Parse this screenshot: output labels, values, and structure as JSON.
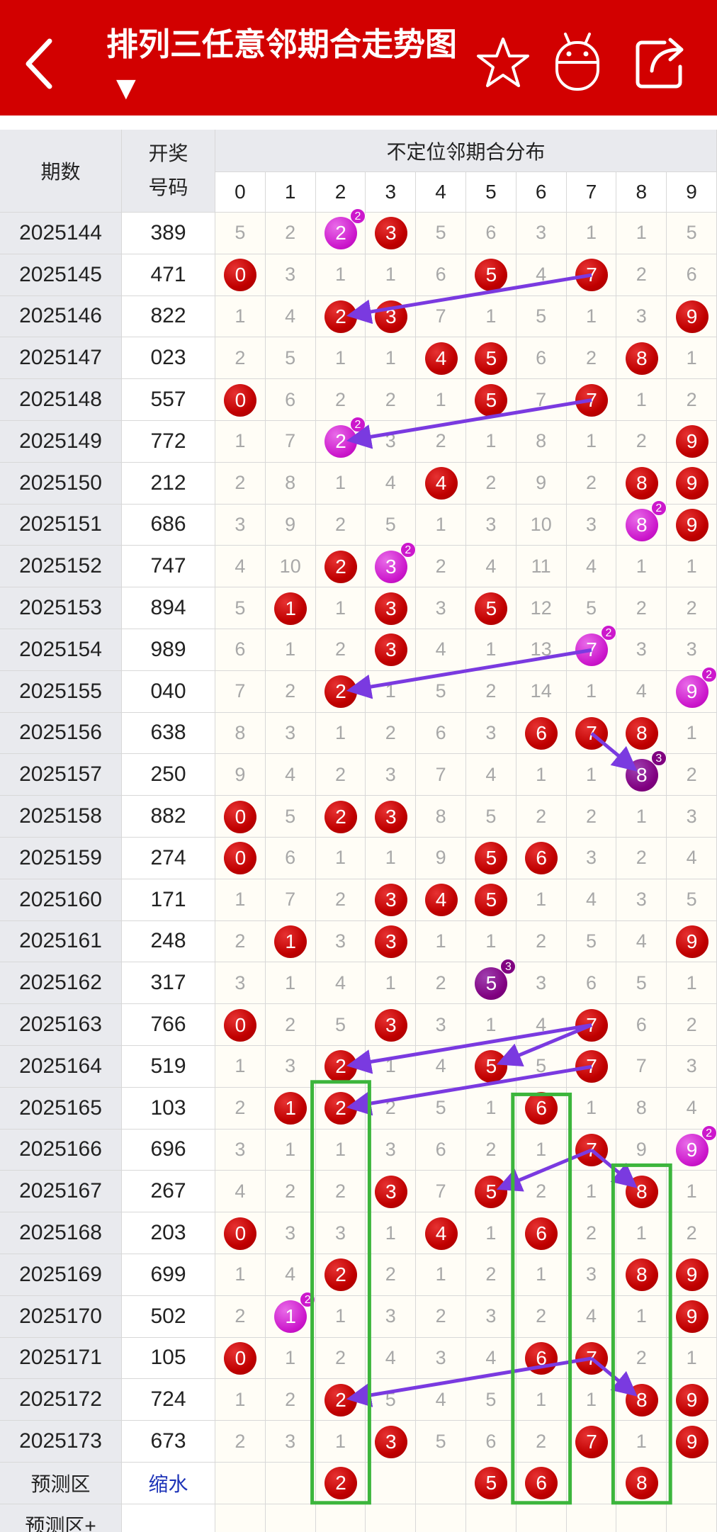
{
  "header": {
    "title": "排列三任意邻期合走势图",
    "dropdown_caret": "▼",
    "icons": [
      "back-icon",
      "star-icon",
      "robot-icon",
      "share-icon"
    ]
  },
  "table": {
    "col_period": "期数",
    "col_code": "开奖号码",
    "col_dist": "不定位邻期合分布",
    "digits": [
      "0",
      "1",
      "2",
      "3",
      "4",
      "5",
      "6",
      "7",
      "8",
      "9"
    ],
    "rows": [
      {
        "period": "2025144",
        "code": "389",
        "cells": [
          "5",
          "2",
          "2",
          "3",
          "5",
          "6",
          "3",
          "1",
          "1",
          "5"
        ]
      },
      {
        "period": "2025145",
        "code": "471",
        "cells": [
          "0",
          "3",
          "1",
          "1",
          "6",
          "5",
          "4",
          "7",
          "2",
          "6"
        ]
      },
      {
        "period": "2025146",
        "code": "822",
        "cells": [
          "1",
          "4",
          "2",
          "3",
          "7",
          "1",
          "5",
          "1",
          "3",
          "9"
        ]
      },
      {
        "period": "2025147",
        "code": "023",
        "cells": [
          "2",
          "5",
          "1",
          "1",
          "4",
          "5",
          "6",
          "2",
          "8",
          "1"
        ]
      },
      {
        "period": "2025148",
        "code": "557",
        "cells": [
          "0",
          "6",
          "2",
          "2",
          "1",
          "5",
          "7",
          "7",
          "1",
          "2"
        ]
      },
      {
        "period": "2025149",
        "code": "772",
        "cells": [
          "1",
          "7",
          "2",
          "3",
          "2",
          "1",
          "8",
          "1",
          "2",
          "9"
        ]
      },
      {
        "period": "2025150",
        "code": "212",
        "cells": [
          "2",
          "8",
          "1",
          "4",
          "4",
          "2",
          "9",
          "2",
          "8",
          "9"
        ]
      },
      {
        "period": "2025151",
        "code": "686",
        "cells": [
          "3",
          "9",
          "2",
          "5",
          "1",
          "3",
          "10",
          "3",
          "8",
          "9"
        ]
      },
      {
        "period": "2025152",
        "code": "747",
        "cells": [
          "4",
          "10",
          "2",
          "3",
          "2",
          "4",
          "11",
          "4",
          "1",
          "1"
        ]
      },
      {
        "period": "2025153",
        "code": "894",
        "cells": [
          "5",
          "1",
          "1",
          "3",
          "3",
          "5",
          "12",
          "5",
          "2",
          "2"
        ]
      },
      {
        "period": "2025154",
        "code": "989",
        "cells": [
          "6",
          "1",
          "2",
          "3",
          "4",
          "1",
          "13",
          "7",
          "3",
          "3"
        ]
      },
      {
        "period": "2025155",
        "code": "040",
        "cells": [
          "7",
          "2",
          "2",
          "1",
          "5",
          "2",
          "14",
          "1",
          "4",
          "9"
        ]
      },
      {
        "period": "2025156",
        "code": "638",
        "cells": [
          "8",
          "3",
          "1",
          "2",
          "6",
          "3",
          "6",
          "7",
          "8",
          "1"
        ]
      },
      {
        "period": "2025157",
        "code": "250",
        "cells": [
          "9",
          "4",
          "2",
          "3",
          "7",
          "4",
          "1",
          "1",
          "8",
          "2"
        ]
      },
      {
        "period": "2025158",
        "code": "882",
        "cells": [
          "0",
          "5",
          "2",
          "3",
          "8",
          "5",
          "2",
          "2",
          "1",
          "3"
        ]
      },
      {
        "period": "2025159",
        "code": "274",
        "cells": [
          "0",
          "6",
          "1",
          "1",
          "9",
          "5",
          "6",
          "3",
          "2",
          "4"
        ]
      },
      {
        "period": "2025160",
        "code": "171",
        "cells": [
          "1",
          "7",
          "2",
          "3",
          "4",
          "5",
          "1",
          "4",
          "3",
          "5"
        ]
      },
      {
        "period": "2025161",
        "code": "248",
        "cells": [
          "2",
          "1",
          "3",
          "3",
          "1",
          "1",
          "2",
          "5",
          "4",
          "9"
        ]
      },
      {
        "period": "2025162",
        "code": "317",
        "cells": [
          "3",
          "1",
          "4",
          "1",
          "2",
          "5",
          "3",
          "6",
          "5",
          "1"
        ]
      },
      {
        "period": "2025163",
        "code": "766",
        "cells": [
          "0",
          "2",
          "5",
          "3",
          "3",
          "1",
          "4",
          "7",
          "6",
          "2"
        ]
      },
      {
        "period": "2025164",
        "code": "519",
        "cells": [
          "1",
          "3",
          "2",
          "1",
          "4",
          "5",
          "5",
          "7",
          "7",
          "3"
        ]
      },
      {
        "period": "2025165",
        "code": "103",
        "cells": [
          "2",
          "1",
          "2",
          "2",
          "5",
          "1",
          "6",
          "1",
          "8",
          "4"
        ]
      },
      {
        "period": "2025166",
        "code": "696",
        "cells": [
          "3",
          "1",
          "1",
          "3",
          "6",
          "2",
          "1",
          "7",
          "9",
          "9"
        ]
      },
      {
        "period": "2025167",
        "code": "267",
        "cells": [
          "4",
          "2",
          "2",
          "3",
          "7",
          "5",
          "2",
          "1",
          "8",
          "1"
        ]
      },
      {
        "period": "2025168",
        "code": "203",
        "cells": [
          "0",
          "3",
          "3",
          "1",
          "4",
          "1",
          "6",
          "2",
          "1",
          "2"
        ]
      },
      {
        "period": "2025169",
        "code": "699",
        "cells": [
          "1",
          "4",
          "2",
          "2",
          "1",
          "2",
          "1",
          "3",
          "8",
          "9"
        ]
      },
      {
        "period": "2025170",
        "code": "502",
        "cells": [
          "2",
          "1",
          "1",
          "3",
          "2",
          "3",
          "2",
          "4",
          "1",
          "9"
        ]
      },
      {
        "period": "2025171",
        "code": "105",
        "cells": [
          "0",
          "1",
          "2",
          "4",
          "3",
          "4",
          "6",
          "7",
          "2",
          "1"
        ]
      },
      {
        "period": "2025172",
        "code": "724",
        "cells": [
          "1",
          "2",
          "2",
          "5",
          "4",
          "5",
          "1",
          "1",
          "8",
          "9"
        ]
      },
      {
        "period": "2025173",
        "code": "673",
        "cells": [
          "2",
          "3",
          "1",
          "3",
          "5",
          "6",
          "2",
          "7",
          "1",
          "9"
        ]
      }
    ],
    "hits": [
      [
        [
          2,
          "pink",
          "2"
        ],
        [
          3,
          "red",
          ""
        ]
      ],
      [
        [
          0,
          "red",
          ""
        ],
        [
          5,
          "red",
          ""
        ],
        [
          7,
          "red",
          ""
        ]
      ],
      [
        [
          2,
          "red",
          ""
        ],
        [
          3,
          "red",
          ""
        ],
        [
          9,
          "red",
          ""
        ]
      ],
      [
        [
          4,
          "red",
          ""
        ],
        [
          5,
          "red",
          ""
        ],
        [
          8,
          "red",
          ""
        ]
      ],
      [
        [
          0,
          "red",
          ""
        ],
        [
          5,
          "red",
          ""
        ],
        [
          7,
          "red",
          ""
        ]
      ],
      [
        [
          2,
          "pink",
          "2"
        ],
        [
          9,
          "red",
          ""
        ]
      ],
      [
        [
          4,
          "red",
          ""
        ],
        [
          8,
          "red",
          ""
        ],
        [
          9,
          "red",
          ""
        ]
      ],
      [
        [
          8,
          "pink",
          "2"
        ],
        [
          9,
          "red",
          ""
        ]
      ],
      [
        [
          2,
          "red",
          ""
        ],
        [
          3,
          "pink",
          "2"
        ]
      ],
      [
        [
          1,
          "red",
          ""
        ],
        [
          3,
          "red",
          ""
        ],
        [
          5,
          "red",
          ""
        ]
      ],
      [
        [
          3,
          "red",
          ""
        ],
        [
          7,
          "pink",
          "2"
        ]
      ],
      [
        [
          2,
          "red",
          ""
        ],
        [
          9,
          "pink",
          "2"
        ]
      ],
      [
        [
          6,
          "red",
          ""
        ],
        [
          7,
          "red",
          ""
        ],
        [
          8,
          "red",
          ""
        ]
      ],
      [
        [
          8,
          "purple",
          "3"
        ]
      ],
      [
        [
          0,
          "red",
          ""
        ],
        [
          2,
          "red",
          ""
        ],
        [
          3,
          "red",
          ""
        ]
      ],
      [
        [
          0,
          "red",
          ""
        ],
        [
          5,
          "red",
          ""
        ],
        [
          6,
          "red",
          ""
        ]
      ],
      [
        [
          3,
          "red",
          ""
        ],
        [
          4,
          "red",
          ""
        ],
        [
          5,
          "red",
          ""
        ]
      ],
      [
        [
          1,
          "red",
          ""
        ],
        [
          3,
          "red",
          ""
        ],
        [
          9,
          "red",
          ""
        ]
      ],
      [
        [
          5,
          "purple",
          "3"
        ]
      ],
      [
        [
          0,
          "red",
          ""
        ],
        [
          3,
          "red",
          ""
        ],
        [
          7,
          "red",
          ""
        ]
      ],
      [
        [
          2,
          "red",
          ""
        ],
        [
          5,
          "red",
          ""
        ],
        [
          7,
          "red",
          ""
        ]
      ],
      [
        [
          1,
          "red",
          ""
        ],
        [
          2,
          "red",
          ""
        ],
        [
          6,
          "red",
          ""
        ]
      ],
      [
        [
          7,
          "red",
          ""
        ],
        [
          9,
          "pink",
          "2"
        ]
      ],
      [
        [
          3,
          "red",
          ""
        ],
        [
          5,
          "red",
          ""
        ],
        [
          8,
          "red",
          ""
        ]
      ],
      [
        [
          0,
          "red",
          ""
        ],
        [
          4,
          "red",
          ""
        ],
        [
          6,
          "red",
          ""
        ]
      ],
      [
        [
          2,
          "red",
          ""
        ],
        [
          8,
          "red",
          ""
        ],
        [
          9,
          "red",
          ""
        ]
      ],
      [
        [
          1,
          "pink",
          "2"
        ],
        [
          9,
          "red",
          ""
        ]
      ],
      [
        [
          0,
          "red",
          ""
        ],
        [
          6,
          "red",
          ""
        ],
        [
          7,
          "red",
          ""
        ]
      ],
      [
        [
          2,
          "red",
          ""
        ],
        [
          8,
          "red",
          ""
        ],
        [
          9,
          "red",
          ""
        ]
      ],
      [
        [
          3,
          "red",
          ""
        ],
        [
          7,
          "red",
          ""
        ],
        [
          9,
          "red",
          ""
        ]
      ]
    ],
    "predict_label": "预测区",
    "predict_shrink": "缩水",
    "predict_balls": [
      "2",
      "5",
      "6",
      "8"
    ],
    "predict_plus_label": "预测区+"
  },
  "colors": {
    "header_bg": "#d20000",
    "ball_red": "#c00000",
    "ball_pink": "#cc18cc",
    "ball_purple": "#800080",
    "arrow": "#7a3ae0",
    "box": "#3cb53c"
  }
}
